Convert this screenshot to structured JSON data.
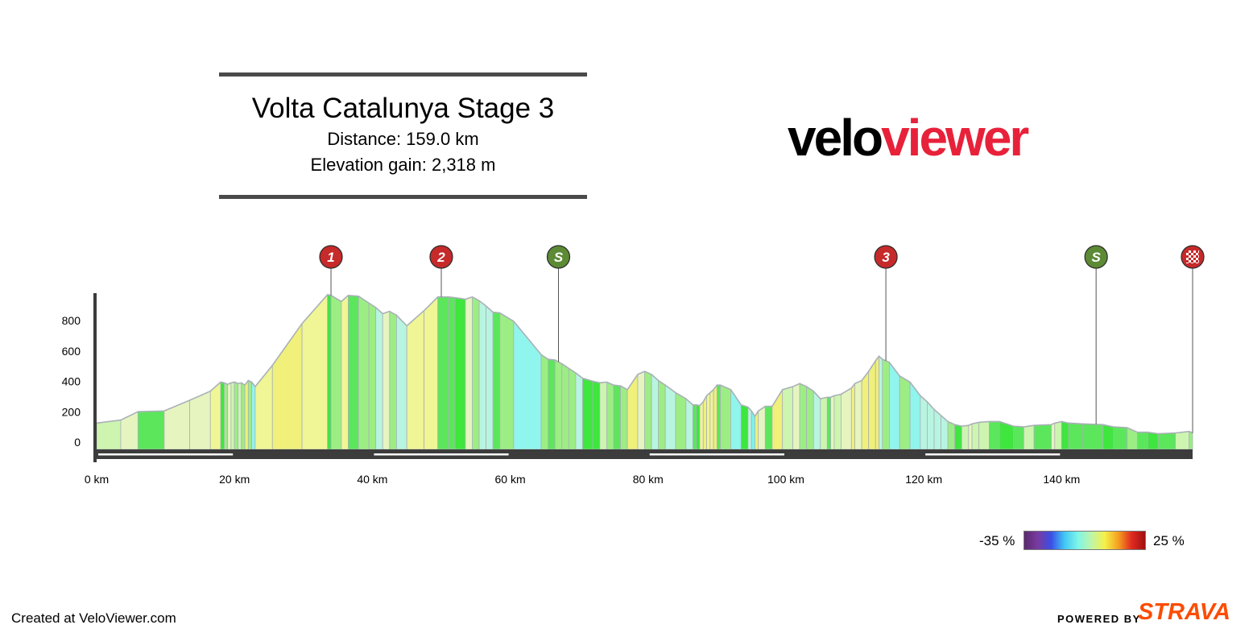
{
  "header": {
    "title": "Volta Catalunya Stage 3",
    "distance_text": "Distance: 159.0 km",
    "elevation_text": "Elevation gain: 2,318 m"
  },
  "brand": {
    "part1": "velo",
    "part2": "viewer"
  },
  "legend": {
    "min_label": "-35 %",
    "max_label": "25 %",
    "gradient_stops": [
      "#5a2a6e",
      "#7a3aa0",
      "#3a4fe6",
      "#41c7f5",
      "#7ff5e8",
      "#bff5a8",
      "#f5f04a",
      "#f5a020",
      "#e02a20",
      "#a01010"
    ]
  },
  "footer": {
    "created_text": "Created at VeloViewer.com",
    "powered_by": "POWERED BY",
    "strava": "STRAVA"
  },
  "colors": {
    "axis_bar": "#3c3c3c",
    "title_rule": "#4a4a4a",
    "marker_red": "#c62a2a",
    "marker_green": "#5c8a35",
    "outline": "#a9b1b7"
  },
  "chart_data": {
    "type": "area",
    "title": "Volta Catalunya Stage 3",
    "xlabel": "",
    "ylabel": "",
    "xlim": [
      0,
      159
    ],
    "ylim": [
      -100,
      1000
    ],
    "y_ticks": [
      0,
      200,
      400,
      600,
      800
    ],
    "x_ticks": [
      0,
      20,
      40,
      60,
      80,
      100,
      120,
      140
    ],
    "x_tick_labels": [
      "0 km",
      "20 km",
      "40 km",
      "60 km",
      "80 km",
      "100 km",
      "120 km",
      "140 km"
    ],
    "grid": false,
    "series": [
      {
        "x": [
          0,
          3.5,
          6,
          9.8,
          13.5,
          16.5,
          18,
          18.5,
          19,
          19.5,
          20,
          20.5,
          21,
          21.5,
          22,
          22.5,
          23,
          25.5,
          29.8,
          33.5,
          34,
          35.5,
          36.5,
          38,
          39.5,
          40.5,
          41.5,
          42.5,
          43.5,
          45,
          47.5,
          49.5,
          51,
          52,
          53.5,
          54.5,
          55.5,
          56.5,
          57.5,
          58.5,
          60.5,
          64.5,
          65.5,
          66.5,
          67.5,
          68.5,
          69.5,
          70.5,
          72,
          73,
          74,
          75,
          76,
          77,
          78.5,
          79.5,
          80.5,
          81.5,
          82.5,
          84,
          85.5,
          86.5,
          87,
          87.5,
          88,
          88.5,
          89,
          89.5,
          90,
          90.5,
          92,
          93.5,
          94.5,
          95,
          95.5,
          96,
          97,
          98,
          99.5,
          101,
          102,
          103,
          104,
          105,
          106,
          106.5,
          107,
          108,
          109.5,
          110,
          111,
          112,
          113,
          113.5,
          114,
          115,
          116.5,
          118,
          119.5,
          120.5,
          121.5,
          122.5,
          123.5,
          124.5,
          125.5,
          126.5,
          127,
          128,
          129.5,
          131,
          133,
          134.5,
          136,
          138.5,
          139,
          140,
          141,
          143,
          146,
          147.5,
          149.5,
          151,
          152.5,
          154,
          156.5,
          158.5,
          159
        ],
        "y": [
          120,
          140,
          195,
          200,
          270,
          330,
          390,
          385,
          375,
          385,
          390,
          380,
          385,
          370,
          400,
          390,
          360,
          500,
          775,
          965,
          960,
          920,
          960,
          955,
          910,
          880,
          840,
          855,
          830,
          760,
          860,
          950,
          950,
          945,
          935,
          950,
          925,
          890,
          850,
          845,
          790,
          570,
          540,
          535,
          510,
          480,
          450,
          415,
          395,
          385,
          390,
          370,
          365,
          340,
          440,
          460,
          440,
          400,
          370,
          320,
          280,
          240,
          240,
          235,
          260,
          300,
          320,
          340,
          370,
          370,
          340,
          240,
          225,
          200,
          165,
          200,
          230,
          230,
          340,
          360,
          380,
          360,
          330,
          280,
          290,
          290,
          300,
          310,
          350,
          380,
          400,
          460,
          530,
          560,
          540,
          520,
          430,
          390,
          300,
          260,
          210,
          170,
          130,
          110,
          100,
          105,
          115,
          125,
          130,
          130,
          100,
          95,
          105,
          110,
          120,
          130,
          120,
          115,
          110,
          95,
          90,
          60,
          60,
          50,
          55,
          65,
          55
        ]
      }
    ],
    "markers": [
      {
        "label": "1",
        "type": "climb",
        "km": 34
      },
      {
        "label": "2",
        "type": "climb",
        "km": 50
      },
      {
        "label": "S",
        "type": "sprint",
        "km": 67
      },
      {
        "label": "3",
        "type": "climb",
        "km": 114.5
      },
      {
        "label": "S",
        "type": "sprint",
        "km": 145
      },
      {
        "label": "",
        "type": "finish",
        "km": 159
      }
    ]
  }
}
